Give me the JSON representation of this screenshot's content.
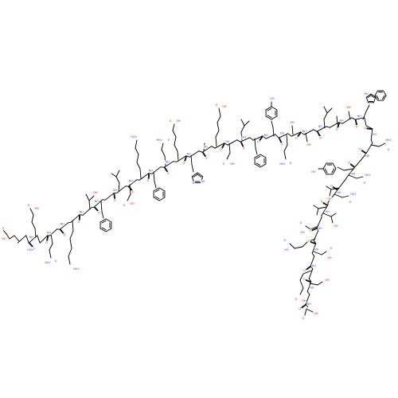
{
  "diagram": {
    "kind": "structural-formula",
    "colors": {
      "bond": "#000000",
      "oxygen": "#e00000",
      "nitrogen": "#3050f8",
      "background": "#ffffff"
    }
  },
  "atom_labels": {
    "oxygen": "O",
    "hydroxyl": "OH",
    "hydroxyl_left": "HO",
    "amine": "NH",
    "amine2": "NH2",
    "amine_h2n": "H2N",
    "nh_hetero": "N",
    "h": "H",
    "amide": "NH2"
  }
}
